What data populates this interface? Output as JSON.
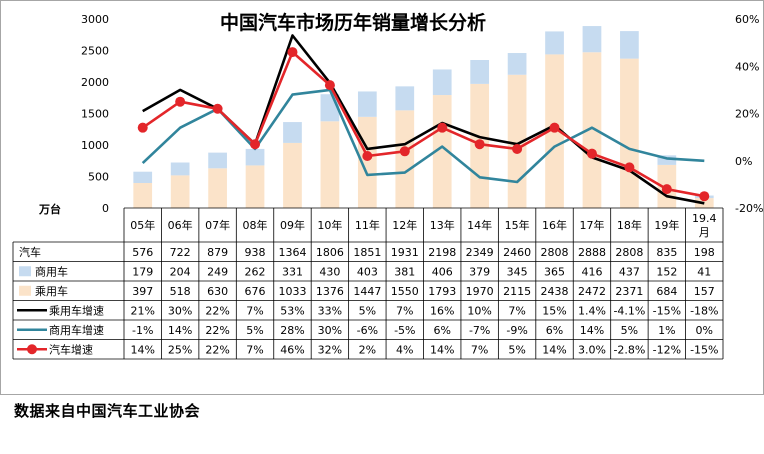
{
  "source_note": "数据来自中国汽车工业协会",
  "chart_data": {
    "type": "bar",
    "title": "中国汽车市场历年销量增长分析",
    "unit_label": "万台",
    "categories": [
      "05年",
      "06年",
      "07年",
      "08年",
      "09年",
      "10年",
      "11年",
      "12年",
      "13年",
      "14年",
      "15年",
      "16年",
      "17年",
      "18年",
      "19年",
      "19.4\n月"
    ],
    "y_left": {
      "ylim": [
        0,
        3000
      ],
      "ticks": [
        "0",
        "500",
        "1000",
        "1500",
        "2000",
        "2500",
        "3000"
      ]
    },
    "y_right": {
      "ylim": [
        -20,
        60
      ],
      "ticks": [
        "-20%",
        "0%",
        "20%",
        "40%",
        "60%"
      ]
    },
    "bar_series": [
      {
        "name": "乘用车",
        "color": "#fbe3c9",
        "values": [
          397,
          518,
          630,
          676,
          1033,
          1376,
          1447,
          1550,
          1793,
          1970,
          2115,
          2438,
          2472,
          2371,
          684,
          157
        ]
      },
      {
        "name": "商用车",
        "color": "#c6dbf0",
        "values": [
          179,
          204,
          249,
          262,
          331,
          430,
          403,
          381,
          406,
          379,
          345,
          365,
          416,
          437,
          152,
          41
        ]
      }
    ],
    "line_series": [
      {
        "name": "乘用车增速",
        "color": "#000000",
        "marker": false,
        "values": [
          21,
          30,
          22,
          7,
          53,
          33,
          5,
          7,
          16,
          10,
          7,
          15,
          1.4,
          -4.1,
          -15,
          -18
        ]
      },
      {
        "name": "商用车增速",
        "color": "#31859c",
        "marker": false,
        "values": [
          -1,
          14,
          22,
          5,
          28,
          30,
          -6,
          -5,
          6,
          -7,
          -9,
          6,
          14,
          5,
          1,
          0
        ]
      },
      {
        "name": "汽车增速",
        "color": "#e3262a",
        "marker": true,
        "values": [
          14,
          25,
          22,
          7,
          46,
          32,
          2,
          4,
          14,
          7,
          5,
          14,
          3.0,
          -2.8,
          -12,
          -15
        ]
      }
    ],
    "table": [
      {
        "label": "汽车",
        "legend": "none",
        "color": "",
        "cells": [
          "576",
          "722",
          "879",
          "938",
          "1364",
          "1806",
          "1851",
          "1931",
          "2198",
          "2349",
          "2460",
          "2808",
          "2888",
          "2808",
          "835",
          "198"
        ]
      },
      {
        "label": "商用车",
        "legend": "box",
        "color": "#c6dbf0",
        "cells": [
          "179",
          "204",
          "249",
          "262",
          "331",
          "430",
          "403",
          "381",
          "406",
          "379",
          "345",
          "365",
          "416",
          "437",
          "152",
          "41"
        ]
      },
      {
        "label": "乘用车",
        "legend": "box",
        "color": "#fbe3c9",
        "cells": [
          "397",
          "518",
          "630",
          "676",
          "1033",
          "1376",
          "1447",
          "1550",
          "1793",
          "1970",
          "2115",
          "2438",
          "2472",
          "2371",
          "684",
          "157"
        ]
      },
      {
        "label": "乘用车增速",
        "legend": "line",
        "color": "#000000",
        "cells": [
          "21%",
          "30%",
          "22%",
          "7%",
          "53%",
          "33%",
          "5%",
          "7%",
          "16%",
          "10%",
          "7%",
          "15%",
          "1.4%",
          "-4.1%",
          "-15%",
          "-18%"
        ]
      },
      {
        "label": "商用车增速",
        "legend": "line",
        "color": "#31859c",
        "cells": [
          "-1%",
          "14%",
          "22%",
          "5%",
          "28%",
          "30%",
          "-6%",
          "-5%",
          "6%",
          "-7%",
          "-9%",
          "6%",
          "14%",
          "5%",
          "1%",
          "0%"
        ]
      },
      {
        "label": "汽车增速",
        "legend": "marker-line",
        "color": "#e3262a",
        "cells": [
          "14%",
          "25%",
          "22%",
          "7%",
          "46%",
          "32%",
          "2%",
          "4%",
          "14%",
          "7%",
          "5%",
          "14%",
          "3.0%",
          "-2.8%",
          "-12%",
          "-15%"
        ]
      }
    ]
  }
}
